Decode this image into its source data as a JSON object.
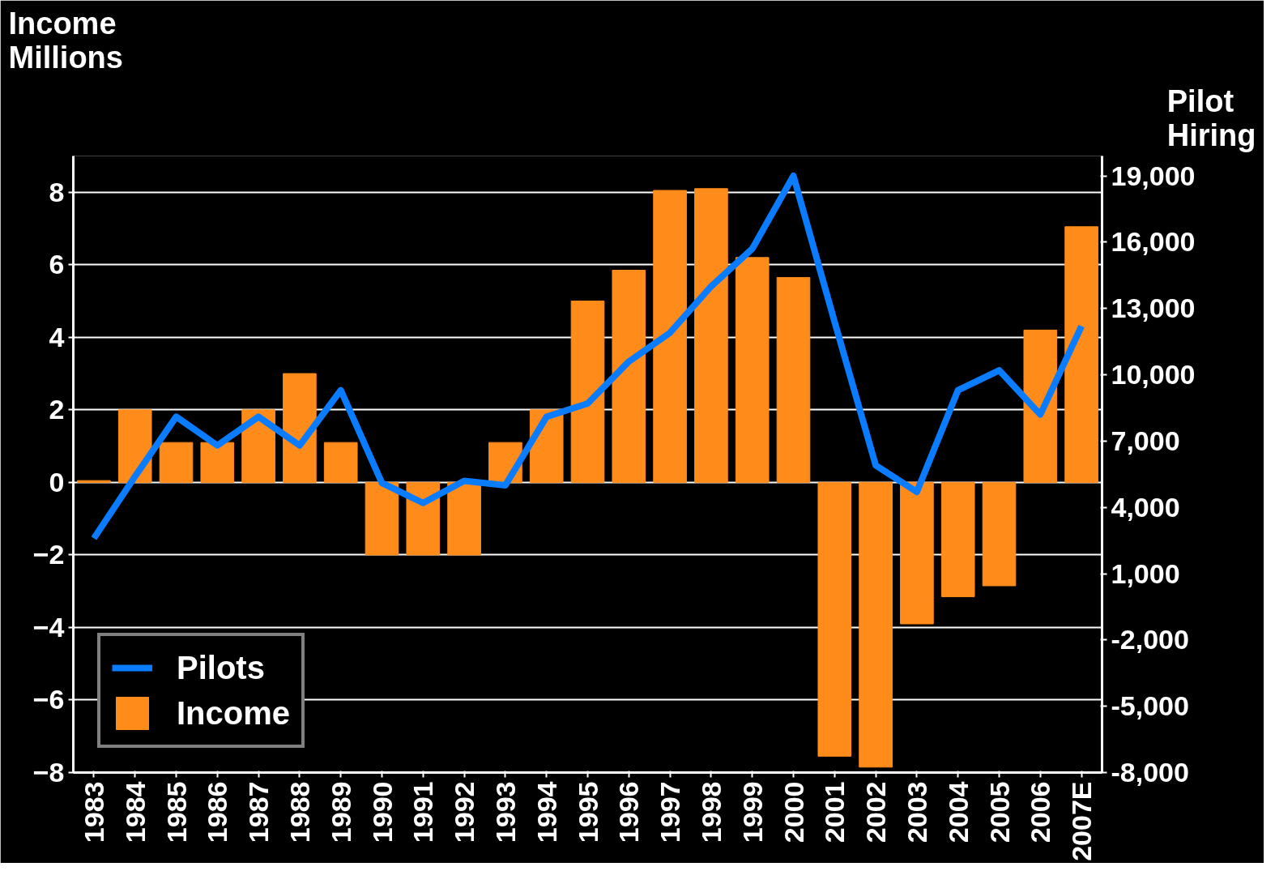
{
  "chart_data": {
    "type": "bar",
    "ylabel": "Income Millions",
    "y2label": "Pilot Hiring",
    "categories": [
      "1983",
      "1984",
      "1985",
      "1986",
      "1987",
      "1988",
      "1989",
      "1990",
      "1991",
      "1992",
      "1993",
      "1994",
      "1995",
      "1996",
      "1997",
      "1998",
      "1999",
      "2000",
      "2001",
      "2002",
      "2003",
      "2004",
      "2005",
      "2006",
      "2007E"
    ],
    "series": [
      {
        "name": "Pilots",
        "type": "line",
        "axis": "y2",
        "color": "#0a7cff",
        "values": [
          2600,
          5400,
          8100,
          6800,
          8100,
          6800,
          9300,
          5100,
          4200,
          5200,
          5000,
          8100,
          8700,
          10600,
          11900,
          14000,
          15700,
          19000,
          12400,
          5900,
          4700,
          9300,
          10200,
          8200,
          12200
        ]
      },
      {
        "name": "Income",
        "color": "#ff8c1a",
        "values": [
          0.05,
          2,
          1.1,
          1.1,
          2,
          3,
          1.1,
          -2,
          -2,
          -2,
          1.1,
          2,
          5,
          5.85,
          8.05,
          8.1,
          6.2,
          5.65,
          -7.55,
          -7.85,
          -3.9,
          -3.15,
          -2.85,
          4.2,
          7.05
        ]
      }
    ],
    "ylim": [
      -8,
      9
    ],
    "yticks": [
      -8,
      -6,
      -4,
      -2,
      0,
      2,
      4,
      6,
      8
    ],
    "y2lim": [
      -8000,
      19900
    ],
    "y2ticks": [
      {
        "value": -8000,
        "label": "-8,000"
      },
      {
        "value": -5000,
        "label": "-5,000"
      },
      {
        "value": -2000,
        "label": "-2,000"
      },
      {
        "value": 1000,
        "label": "1,000"
      },
      {
        "value": 4000,
        "label": "4,000"
      },
      {
        "value": 7000,
        "label": "7,000"
      },
      {
        "value": 10000,
        "label": "10,000"
      },
      {
        "value": 13000,
        "label": "13,000"
      },
      {
        "value": 16000,
        "label": "16,000"
      },
      {
        "value": 19000,
        "label": "19,000"
      }
    ],
    "grid": "y",
    "legend": "bottom left"
  }
}
